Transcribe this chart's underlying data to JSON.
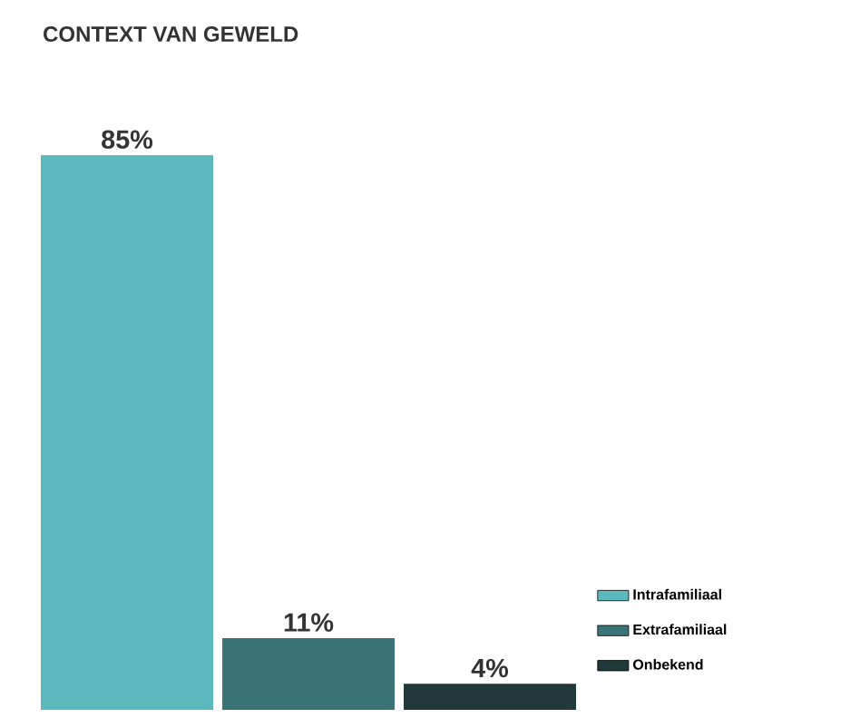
{
  "chart_data": {
    "type": "bar",
    "title": "CONTEXT VAN GEWELD",
    "categories": [
      null,
      null,
      null
    ],
    "stacked": true,
    "series": [
      {
        "name": "Intrafamiliaal",
        "color": "#5bb8bc",
        "values": [
          85,
          null,
          null
        ],
        "value_labels": [
          "85%",
          null,
          null
        ]
      },
      {
        "name": "Extrafamiliaal",
        "color": "#3a7476",
        "values": [
          null,
          11,
          null
        ],
        "value_labels": [
          null,
          "11%",
          null
        ]
      },
      {
        "name": "Onbekend",
        "color": "#22393b",
        "values": [
          null,
          null,
          4
        ],
        "value_labels": [
          null,
          null,
          "4%"
        ]
      }
    ],
    "legend": "right"
  }
}
